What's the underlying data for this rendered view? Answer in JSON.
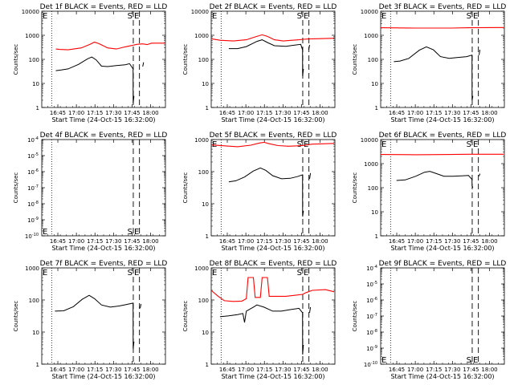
{
  "start_label": "Start Time (24-Oct-15 16:32:00)",
  "y_label": "Counts/sec",
  "markers": {
    "s": "S",
    "e": "E"
  },
  "chart_data": [
    {
      "type": "line",
      "title": "Det 1f BLACK = Events, RED = LLD",
      "yscale": "log",
      "ylim": [
        1,
        10000
      ],
      "xlim": [
        "16:32",
        "18:12"
      ],
      "xticks": [
        "16:45",
        "17:00",
        "17:15",
        "17:30",
        "17:45",
        "18:00"
      ],
      "yticks": [
        "1",
        "10",
        "100",
        "1000",
        "10000"
      ],
      "series": [
        {
          "color": "#ff0000",
          "points": [
            [
              16.0,
              270
            ],
            [
              20,
              260
            ],
            [
              30,
              250
            ],
            [
              45,
              300
            ],
            [
              55,
              420
            ],
            [
              60,
              520
            ],
            [
              65,
              450
            ],
            [
              75,
              300
            ],
            [
              85,
              270
            ],
            [
              95,
              330
            ],
            [
              100,
              360
            ],
            [
              103,
              380
            ],
            [
              108,
              420
            ],
            [
              115,
              440
            ],
            [
              120,
              410
            ],
            [
              125,
              470
            ],
            [
              140,
              470
            ]
          ]
        },
        {
          "color": "#000000",
          "points": [
            [
              16.0,
              34
            ],
            [
              22,
              36
            ],
            [
              30,
              40
            ],
            [
              42,
              62
            ],
            [
              52,
              105
            ],
            [
              57,
              125
            ],
            [
              62,
              95
            ],
            [
              68,
              52
            ],
            [
              75,
              50
            ],
            [
              85,
              55
            ],
            [
              95,
              60
            ],
            [
              100,
              66
            ],
            [
              104,
              40
            ],
            [
              104.1,
              1.5
            ],
            [
              105,
              3
            ]
          ]
        },
        {
          "color": "#000000",
          "points": [
            [
              115,
              50
            ],
            [
              116,
              75
            ]
          ]
        }
      ]
    },
    {
      "type": "line",
      "title": "Det 2f BLACK = Events, RED = LLD",
      "yscale": "log",
      "ylim": [
        1,
        10000
      ],
      "xlim": [
        "16:32",
        "18:12"
      ],
      "xticks": [
        "16:45",
        "17:00",
        "17:15",
        "17:30",
        "17:45",
        "18:00"
      ],
      "yticks": [
        "1",
        "10",
        "100",
        "1000",
        "10000"
      ],
      "series": [
        {
          "color": "#ff0000",
          "points": [
            [
              0,
              720
            ],
            [
              10,
              620
            ],
            [
              25,
              580
            ],
            [
              40,
              650
            ],
            [
              50,
              860
            ],
            [
              58,
              1050
            ],
            [
              64,
              900
            ],
            [
              72,
              650
            ],
            [
              82,
              580
            ],
            [
              92,
              620
            ],
            [
              100,
              650
            ],
            [
              105,
              680
            ],
            [
              110,
              700
            ],
            [
              120,
              720
            ],
            [
              140,
              750
            ]
          ]
        },
        {
          "color": "#000000",
          "points": [
            [
              20,
              280
            ],
            [
              30,
              280
            ],
            [
              40,
              340
            ],
            [
              52,
              560
            ],
            [
              58,
              650
            ],
            [
              64,
              500
            ],
            [
              72,
              370
            ],
            [
              85,
              350
            ],
            [
              95,
              390
            ],
            [
              102,
              420
            ],
            [
              104,
              250
            ],
            [
              104.1,
              20
            ],
            [
              105,
              40
            ]
          ]
        },
        {
          "color": "#000000",
          "points": [
            [
              111,
              250
            ],
            [
              112,
              400
            ]
          ]
        }
      ]
    },
    {
      "type": "line",
      "title": "Det 3f BLACK = Events, RED = LLD",
      "yscale": "log",
      "ylim": [
        1,
        10000
      ],
      "xlim": [
        "16:32",
        "18:12"
      ],
      "xticks": [
        "16:45",
        "17:00",
        "17:15",
        "17:30",
        "17:45",
        "18:00"
      ],
      "yticks": [
        "1",
        "10",
        "100",
        "1000",
        "10000"
      ],
      "series": [
        {
          "color": "#ff0000",
          "points": [
            [
              0,
              2050
            ],
            [
              40,
              2000
            ],
            [
              80,
              2000
            ],
            [
              100,
              2050
            ],
            [
              140,
              2100
            ]
          ]
        },
        {
          "color": "#000000",
          "points": [
            [
              15,
              80
            ],
            [
              22,
              85
            ],
            [
              32,
              110
            ],
            [
              44,
              240
            ],
            [
              52,
              330
            ],
            [
              60,
              250
            ],
            [
              68,
              130
            ],
            [
              78,
              110
            ],
            [
              88,
              120
            ],
            [
              98,
              130
            ],
            [
              104,
              150
            ],
            [
              104.1,
              2
            ],
            [
              105,
              3
            ]
          ]
        },
        {
          "color": "#000000",
          "points": [
            [
              112,
              150
            ],
            [
              113,
              250
            ]
          ]
        }
      ]
    },
    {
      "type": "line",
      "title": "Det 4f BLACK = Events, RED = LLD",
      "yscale": "log",
      "ylim": [
        1e-10,
        0.0001
      ],
      "xlim": [
        "16:32",
        "18:12"
      ],
      "xticks": [
        "16:45",
        "17:00",
        "17:15",
        "17:30",
        "17:45",
        "18:00"
      ],
      "yticks": [
        "10^-10",
        "10^-9",
        "10^-8",
        "10^-7",
        "10^-6",
        "10^-5",
        "10^-4"
      ],
      "series": []
    },
    {
      "type": "line",
      "title": "Det 5f BLACK = Events, RED = LLD",
      "yscale": "log",
      "ylim": [
        1,
        1000
      ],
      "xlim": [
        "16:32",
        "18:12"
      ],
      "xticks": [
        "16:45",
        "17:00",
        "17:15",
        "17:30",
        "17:45",
        "18:00"
      ],
      "yticks": [
        "1",
        "10",
        "100",
        "1000"
      ],
      "series": [
        {
          "color": "#ff0000",
          "points": [
            [
              0,
              680
            ],
            [
              15,
              640
            ],
            [
              30,
              600
            ],
            [
              45,
              670
            ],
            [
              55,
              780
            ],
            [
              60,
              820
            ],
            [
              66,
              740
            ],
            [
              76,
              650
            ],
            [
              88,
              620
            ],
            [
              98,
              640
            ],
            [
              106,
              660
            ],
            [
              115,
              720
            ],
            [
              130,
              740
            ],
            [
              140,
              760
            ]
          ]
        },
        {
          "color": "#000000",
          "points": [
            [
              20,
              48
            ],
            [
              28,
              52
            ],
            [
              38,
              68
            ],
            [
              48,
              105
            ],
            [
              56,
              130
            ],
            [
              62,
              110
            ],
            [
              70,
              75
            ],
            [
              80,
              60
            ],
            [
              90,
              62
            ],
            [
              98,
              70
            ],
            [
              104,
              80
            ],
            [
              104.1,
              4
            ],
            [
              105,
              6
            ]
          ]
        },
        {
          "color": "#000000",
          "points": [
            [
              112,
              60
            ],
            [
              113,
              90
            ]
          ]
        }
      ]
    },
    {
      "type": "line",
      "title": "Det 6f BLACK = Events, RED = LLD",
      "yscale": "log",
      "ylim": [
        1,
        10000
      ],
      "xlim": [
        "16:32",
        "18:12"
      ],
      "xticks": [
        "16:45",
        "17:00",
        "17:15",
        "17:30",
        "17:45",
        "18:00"
      ],
      "yticks": [
        "1",
        "10",
        "100",
        "1000",
        "10000"
      ],
      "series": [
        {
          "color": "#ff0000",
          "points": [
            [
              0,
              2400
            ],
            [
              40,
              2350
            ],
            [
              80,
              2400
            ],
            [
              100,
              2450
            ],
            [
              140,
              2450
            ]
          ]
        },
        {
          "color": "#000000",
          "points": [
            [
              18,
              200
            ],
            [
              28,
              210
            ],
            [
              40,
              300
            ],
            [
              50,
              440
            ],
            [
              56,
              480
            ],
            [
              62,
              400
            ],
            [
              72,
              300
            ],
            [
              82,
              300
            ],
            [
              92,
              310
            ],
            [
              100,
              320
            ],
            [
              104,
              220
            ],
            [
              104.1,
              120
            ],
            [
              105,
              100
            ]
          ]
        },
        {
          "color": "#000000",
          "points": [
            [
              112,
              300
            ],
            [
              113,
              380
            ]
          ]
        }
      ]
    },
    {
      "type": "line",
      "title": "Det 7f BLACK = Events, RED = LLD",
      "yscale": "log",
      "ylim": [
        1,
        1000
      ],
      "xlim": [
        "16:32",
        "18:12"
      ],
      "xticks": [
        "16:45",
        "17:00",
        "17:15",
        "17:30",
        "17:45",
        "18:00"
      ],
      "yticks": [
        "1",
        "10",
        "100",
        "1000"
      ],
      "series": [
        {
          "color": "#000000",
          "points": [
            [
              15,
              45
            ],
            [
              25,
              46
            ],
            [
              36,
              62
            ],
            [
              46,
              105
            ],
            [
              54,
              140
            ],
            [
              60,
              110
            ],
            [
              68,
              70
            ],
            [
              78,
              60
            ],
            [
              88,
              65
            ],
            [
              96,
              72
            ],
            [
              104,
              80
            ],
            [
              104.1,
              3
            ],
            [
              105,
              5
            ]
          ]
        },
        {
          "color": "#000000",
          "points": [
            [
              112,
              55
            ],
            [
              113,
              75
            ]
          ]
        }
      ]
    },
    {
      "type": "line",
      "title": "Det 8f BLACK = Events, RED = LLD",
      "yscale": "log",
      "ylim": [
        1,
        1000
      ],
      "xlim": [
        "16:32",
        "18:12"
      ],
      "xticks": [
        "16:45",
        "17:00",
        "17:15",
        "17:30",
        "17:45",
        "18:00"
      ],
      "yticks": [
        "1",
        "10",
        "100",
        "1000"
      ],
      "series": [
        {
          "color": "#ff0000",
          "points": [
            [
              0,
              200
            ],
            [
              8,
              130
            ],
            [
              15,
              95
            ],
            [
              25,
              90
            ],
            [
              35,
              92
            ],
            [
              40,
              110
            ],
            [
              42,
              500
            ],
            [
              48,
              500
            ],
            [
              50,
              120
            ],
            [
              56,
              120
            ],
            [
              58,
              500
            ],
            [
              64,
              500
            ],
            [
              66,
              130
            ],
            [
              75,
              130
            ],
            [
              85,
              130
            ],
            [
              95,
              140
            ],
            [
              104,
              150
            ],
            [
              108,
              170
            ],
            [
              115,
              200
            ],
            [
              130,
              210
            ],
            [
              140,
              180
            ]
          ]
        },
        {
          "color": "#000000",
          "points": [
            [
              10,
              30
            ],
            [
              20,
              32
            ],
            [
              30,
              35
            ],
            [
              36,
              38
            ],
            [
              38,
              20
            ],
            [
              40,
              45
            ],
            [
              48,
              60
            ],
            [
              52,
              70
            ],
            [
              60,
              60
            ],
            [
              70,
              45
            ],
            [
              80,
              45
            ],
            [
              90,
              50
            ],
            [
              100,
              55
            ],
            [
              104,
              40
            ],
            [
              104.1,
              2
            ],
            [
              105,
              4
            ]
          ]
        },
        {
          "color": "#000000",
          "points": [
            [
              112,
              40
            ],
            [
              113,
              60
            ]
          ]
        }
      ]
    },
    {
      "type": "line",
      "title": "Det 9f BLACK = Events, RED = LLD",
      "yscale": "log",
      "ylim": [
        1e-10,
        0.0001
      ],
      "xlim": [
        "16:32",
        "18:12"
      ],
      "xticks": [
        "16:45",
        "17:00",
        "17:15",
        "17:30",
        "17:45",
        "18:00"
      ],
      "yticks": [
        "10^-10",
        "10^-9",
        "10^-8",
        "10^-7",
        "10^-6",
        "10^-5",
        "10^-4"
      ],
      "series": []
    }
  ]
}
